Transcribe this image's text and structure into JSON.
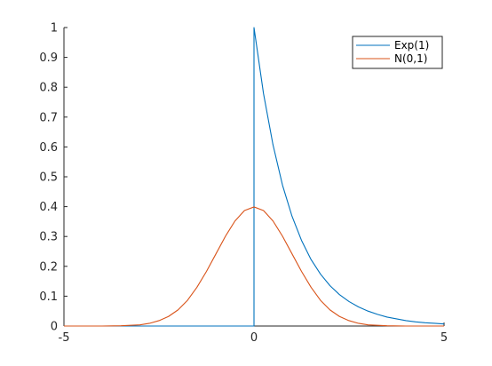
{
  "chart_data": {
    "type": "line",
    "title": "",
    "xlabel": "",
    "ylabel": "",
    "xlim": [
      -5,
      5
    ],
    "ylim": [
      0,
      1
    ],
    "xticks": [
      -5,
      0,
      5
    ],
    "yticks": [
      0,
      0.1,
      0.2,
      0.3,
      0.4,
      0.5,
      0.6,
      0.7,
      0.8,
      0.9,
      1
    ],
    "grid": false,
    "legend_position": "top-right",
    "series": [
      {
        "name": "Exp(1)",
        "color": "#0072BD",
        "x": [
          -5,
          -4,
          -3,
          -2,
          -1,
          0,
          0,
          0.25,
          0.5,
          0.75,
          1,
          1.25,
          1.5,
          1.75,
          2,
          2.25,
          2.5,
          2.75,
          3,
          3.25,
          3.5,
          3.75,
          4,
          4.25,
          4.5,
          4.75,
          5
        ],
        "y": [
          0,
          0,
          0,
          0,
          0,
          0,
          1,
          0.779,
          0.607,
          0.472,
          0.368,
          0.287,
          0.223,
          0.174,
          0.135,
          0.105,
          0.082,
          0.064,
          0.05,
          0.039,
          0.03,
          0.024,
          0.018,
          0.014,
          0.011,
          0.009,
          0.007
        ]
      },
      {
        "name": "N(0,1)",
        "color": "#D95319",
        "x": [
          -5,
          -4.5,
          -4,
          -3.5,
          -3,
          -2.75,
          -2.5,
          -2.25,
          -2,
          -1.75,
          -1.5,
          -1.25,
          -1,
          -0.75,
          -0.5,
          -0.25,
          0,
          0.25,
          0.5,
          0.75,
          1,
          1.25,
          1.5,
          1.75,
          2,
          2.25,
          2.5,
          2.75,
          3,
          3.5,
          4,
          4.5,
          5
        ],
        "y": [
          0,
          0,
          0,
          0.001,
          0.004,
          0.009,
          0.018,
          0.032,
          0.054,
          0.086,
          0.13,
          0.183,
          0.242,
          0.301,
          0.352,
          0.387,
          0.399,
          0.387,
          0.352,
          0.301,
          0.242,
          0.183,
          0.13,
          0.086,
          0.054,
          0.032,
          0.018,
          0.009,
          0.004,
          0.001,
          0,
          0,
          0
        ]
      }
    ]
  }
}
